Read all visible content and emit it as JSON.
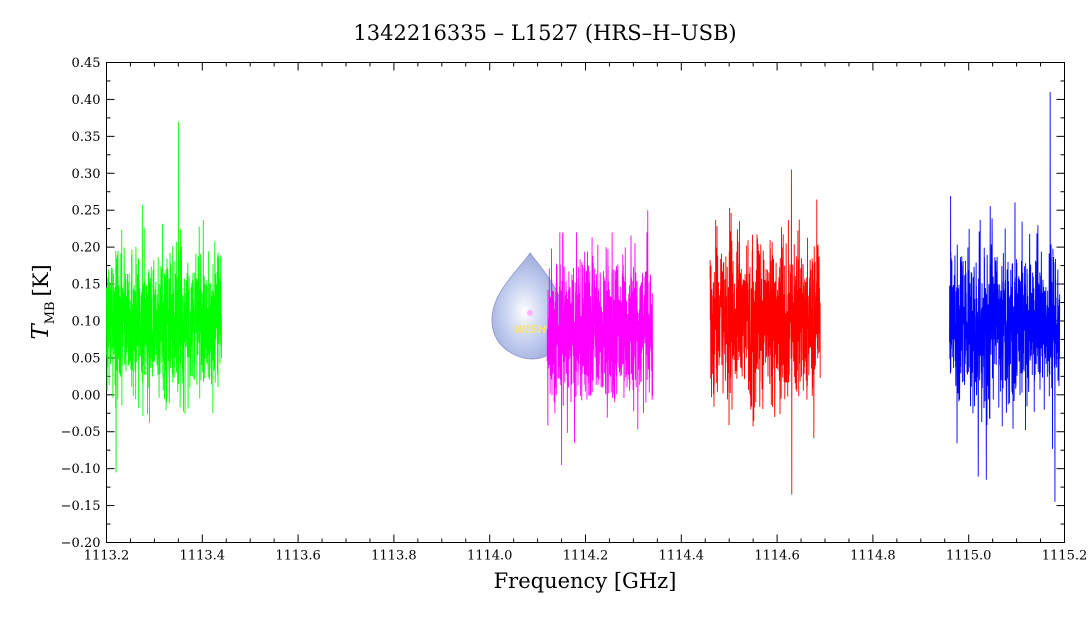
{
  "chart_data": {
    "type": "line",
    "title": "1342216335 – L1527 (HRS–H–USB)",
    "xlabel": "Frequency [GHz]",
    "ylabel_main": "T",
    "ylabel_sub": "MB",
    "ylabel_unit": "[K]",
    "xlim": [
      1113.2,
      1115.2
    ],
    "ylim": [
      -0.2,
      0.45
    ],
    "x_ticks": [
      "1113.2",
      "1113.4",
      "1113.6",
      "1113.8",
      "1114.0",
      "1114.2",
      "1114.4",
      "1114.6",
      "1114.8",
      "1115.0",
      "1115.2"
    ],
    "y_ticks": [
      "−0.20",
      "−0.15",
      "−0.10",
      "−0.05",
      "0.00",
      "0.05",
      "0.10",
      "0.15",
      "0.20",
      "0.25",
      "0.30",
      "0.35",
      "0.40",
      "0.45"
    ],
    "grid": false,
    "legend": "none",
    "series": [
      {
        "color": "#00ff00",
        "x_range": [
          1113.2,
          1113.44
        ],
        "baseline": 0.1,
        "noise_sigma": 0.065,
        "max": 0.37,
        "max_x": 1113.35,
        "min": -0.105,
        "min_x": 1113.22
      },
      {
        "color": "#ff00ff",
        "x_range": [
          1114.12,
          1114.34
        ],
        "baseline": 0.09,
        "noise_sigma": 0.065,
        "max": 0.25,
        "max_x": 1114.33,
        "min": -0.095,
        "min_x": 1114.15
      },
      {
        "color": "#ff0000",
        "x_range": [
          1114.46,
          1114.69
        ],
        "baseline": 0.1,
        "noise_sigma": 0.07,
        "max": 0.305,
        "max_x": 1114.63,
        "min": -0.135,
        "min_x": 1114.63
      },
      {
        "color": "#0000ff",
        "x_range": [
          1114.96,
          1115.19
        ],
        "baseline": 0.095,
        "noise_sigma": 0.07,
        "max": 0.41,
        "max_x": 1115.17,
        "min": -0.145,
        "min_x": 1115.18
      }
    ]
  },
  "logo": {
    "text": "WISH",
    "x_center": 1114.08,
    "y_center": 0.1
  }
}
